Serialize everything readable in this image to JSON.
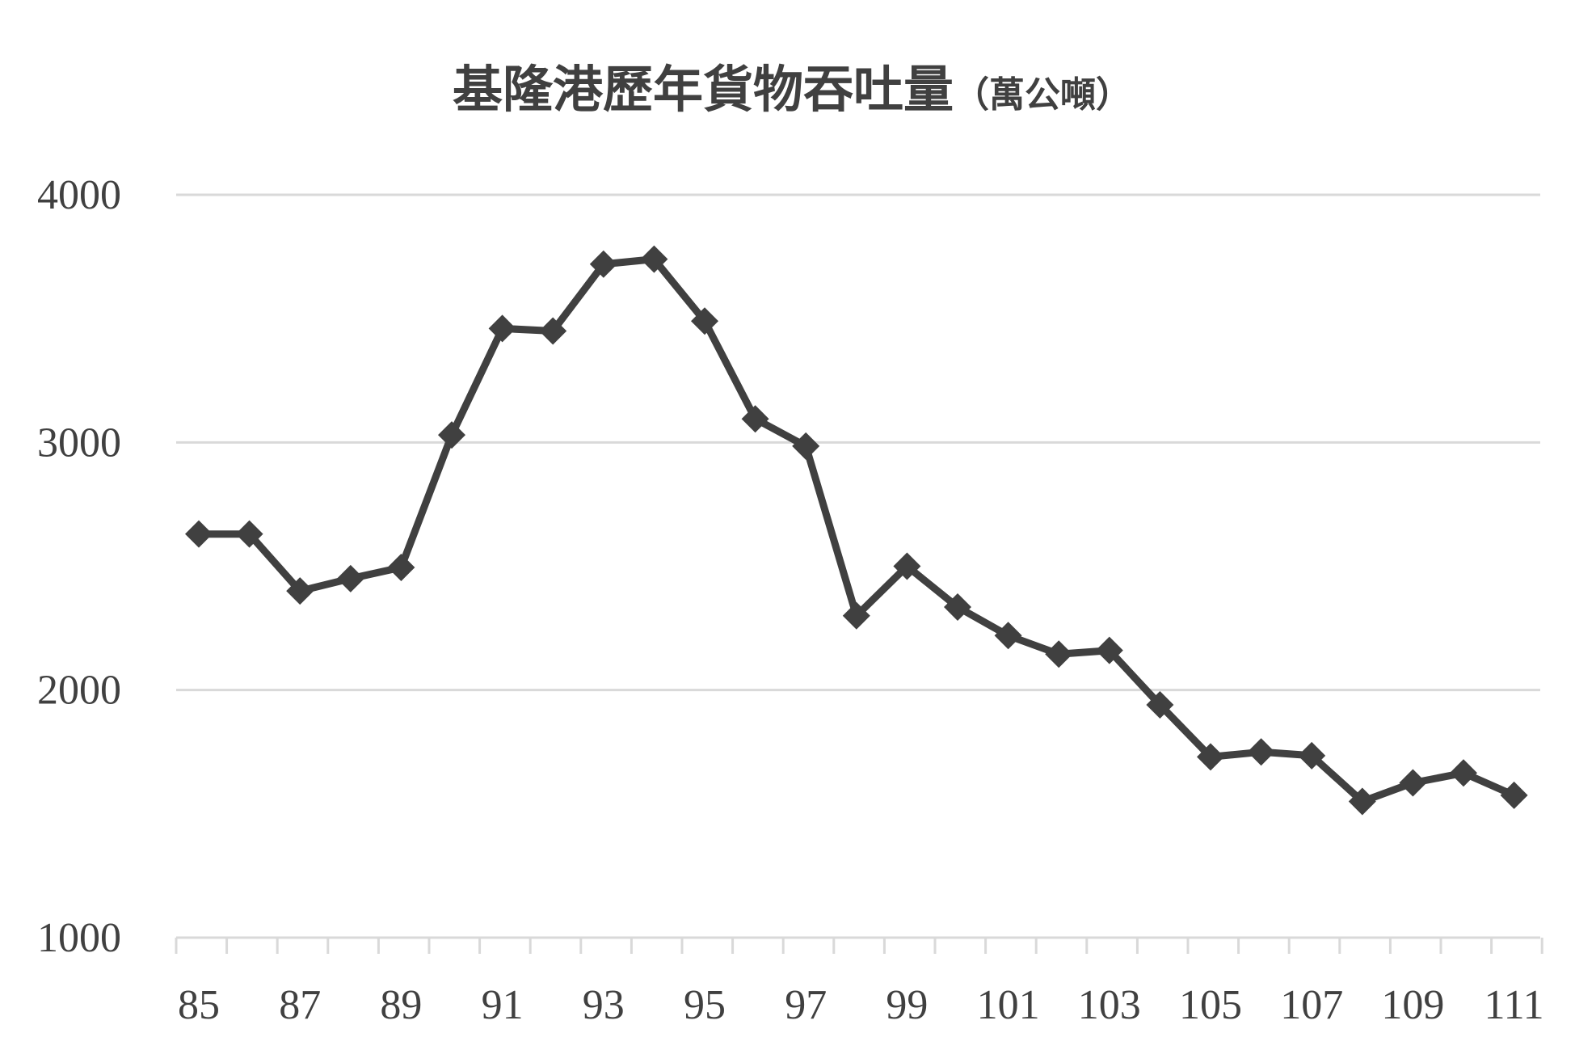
{
  "chart_data": {
    "type": "line",
    "title": "基隆港歷年貨物吞吐量",
    "title_unit": "（萬公噸）",
    "xlabel": "",
    "ylabel": "",
    "x": [
      85,
      86,
      87,
      88,
      89,
      90,
      91,
      92,
      93,
      94,
      95,
      96,
      97,
      98,
      99,
      100,
      101,
      102,
      103,
      104,
      105,
      106,
      107,
      108,
      109,
      110,
      111
    ],
    "x_tick_labels": [
      "85",
      "87",
      "89",
      "91",
      "93",
      "95",
      "97",
      "99",
      "101",
      "103",
      "105",
      "107",
      "109",
      "111"
    ],
    "y_tick_labels": [
      "4000",
      "3000",
      "2000",
      "1000"
    ],
    "ylim": [
      1000,
      4000
    ],
    "grid": true,
    "legend": "none",
    "series": [
      {
        "values": [
          2630,
          2630,
          2400,
          2450,
          2495,
          3030,
          3460,
          3450,
          3720,
          3740,
          3490,
          3095,
          2985,
          2300,
          2500,
          2335,
          2220,
          2145,
          2160,
          1940,
          1730,
          1750,
          1735,
          1550,
          1625,
          1665,
          1575
        ],
        "color": "#404040",
        "marker": "diamond"
      }
    ]
  }
}
